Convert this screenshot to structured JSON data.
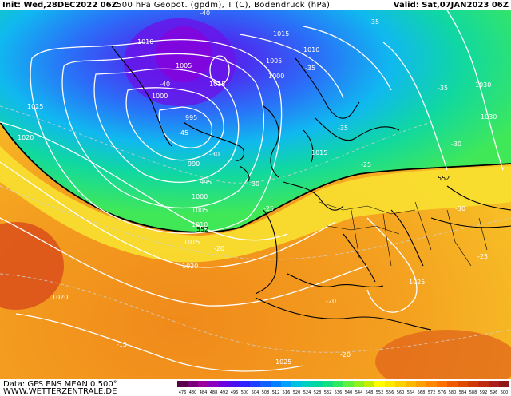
{
  "header": {
    "init": "Init: Wed,28DEC2022 06Z",
    "title": "500 hPa Geopot. (gpdm), T (C), Bodendruck (hPa)",
    "valid": "Valid: Sat,07JAN2023 06Z"
  },
  "map": {
    "region": "North Atlantic and Europe",
    "contour_552_label": "552",
    "temp_labels": [
      "-40",
      "-35",
      "-40",
      "-35",
      "-45",
      "-35",
      "-30",
      "-35",
      "-30",
      "-30",
      "-25",
      "-30",
      "-25",
      "-25",
      "-20",
      "-20",
      "-15",
      "-20"
    ],
    "pressure_labels": [
      "1010",
      "1005",
      "1000",
      "1015",
      "1025",
      "1020",
      "995",
      "990",
      "995",
      "1000",
      "1005",
      "1010",
      "1015",
      "1020",
      "1025",
      "1020",
      "1015",
      "1010",
      "1005",
      "1000",
      "1015",
      "1030",
      "1030",
      "1025"
    ]
  },
  "footer": {
    "data_label": "Data: GFS ENS MEAN 0.500°",
    "site": "WWW.WETTERZENTRALE.DE",
    "scale_values": [
      "476",
      "480",
      "484",
      "488",
      "492",
      "496",
      "500",
      "504",
      "508",
      "512",
      "516",
      "520",
      "524",
      "528",
      "532",
      "536",
      "540",
      "544",
      "548",
      "552",
      "556",
      "560",
      "564",
      "568",
      "572",
      "576",
      "580",
      "584",
      "588",
      "592",
      "596",
      "600"
    ],
    "scale_colors": [
      "#5a004a",
      "#7a007a",
      "#9a009a",
      "#8a00c0",
      "#6a00e0",
      "#4a10f0",
      "#3020ff",
      "#2040ff",
      "#1060ff",
      "#0080ff",
      "#00a0ff",
      "#00c0e0",
      "#00d0c0",
      "#00d8a0",
      "#10e080",
      "#30e860",
      "#60f040",
      "#90f020",
      "#c0f000",
      "#ffff00",
      "#ffe800",
      "#ffd000",
      "#ffb800",
      "#ffa000",
      "#ff8800",
      "#ff7000",
      "#f05a00",
      "#e04a00",
      "#d03a00",
      "#c02a10",
      "#a82020",
      "#901818"
    ]
  }
}
